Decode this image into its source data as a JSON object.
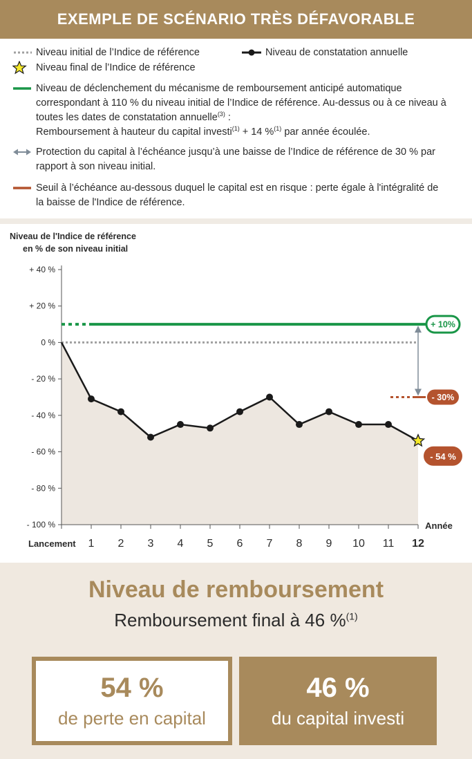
{
  "header": {
    "title": "EXEMPLE DE SCÉNARIO TRÈS DÉFAVORABLE"
  },
  "legend": {
    "initial_level": "Niveau initial de l’Indice de référence",
    "annual_level": "Niveau de constatation annuelle",
    "final_level": "Niveau final de l’Indice de référence",
    "trigger_line1": "Niveau de déclenchement du mécanisme de remboursement anticipé automatique",
    "trigger_line2": "correspondant à 110 % du niveau initial de l’Indice de référence. Au-dessus ou à ce niveau à",
    "trigger_line3": "toutes les dates de constatation annuelle",
    "trigger_line3_sup": "(3)",
    "trigger_line3_end": " :",
    "trigger_line4_a": "Remboursement à hauteur du capital investi",
    "trigger_line4_sup1": "(1)",
    "trigger_line4_b": " + 14 %",
    "trigger_line4_sup2": "(1)",
    "trigger_line4_c": " par année écoulée.",
    "protection_line1": "Protection du capital à l’échéance jusqu’à une baisse de l’Indice de référence de 30 % par",
    "protection_line2": "rapport à son niveau initial.",
    "threshold_line1": "Seuil à l’échéance au-dessous duquel le capital est en risque : perte égale à l'intégralité de",
    "threshold_line2": "la baisse de l'Indice de référence."
  },
  "colors": {
    "brand": "#a88a5c",
    "green": "#1a9648",
    "red": "#b4532e",
    "grey_dotted": "#a0a0a0",
    "arrow": "#7f8c98",
    "area": "#ede7e0",
    "star": "#f5e92a"
  },
  "chart_data": {
    "type": "line",
    "ylabel_line1": "Niveau de l'Indice de référence",
    "ylabel_line2": "en % de son niveau initial",
    "xlabel": "Année",
    "ylim": [
      -100,
      40
    ],
    "yticks": [
      40,
      20,
      0,
      -20,
      -40,
      -60,
      -80,
      -100
    ],
    "ytick_labels": [
      "+ 40 %",
      "+ 20 %",
      "0 %",
      "- 20 %",
      "- 40 %",
      "- 60 %",
      "- 80 %",
      "- 100 %"
    ],
    "x": [
      0,
      1,
      2,
      3,
      4,
      5,
      6,
      7,
      8,
      9,
      10,
      11,
      12
    ],
    "xtick_labels": [
      "Lancement",
      "1",
      "2",
      "3",
      "4",
      "5",
      "6",
      "7",
      "8",
      "9",
      "10",
      "11",
      "12"
    ],
    "series": [
      {
        "values": [
          0,
          -31,
          -38,
          -52,
          -45,
          -47,
          -38,
          -30,
          -45,
          -38,
          -45,
          -45,
          -54
        ]
      }
    ],
    "trigger_level": 10,
    "trigger_label": "+ 10%",
    "initial_level": 0,
    "threshold_level": -30,
    "threshold_label": "- 30%",
    "final_value": -54,
    "final_label": "- 54 %",
    "grid": false
  },
  "result": {
    "title": "Niveau de remboursement",
    "subtitle": "Remboursement final à 46 %",
    "subtitle_sup": "(1)",
    "loss_value": "54 %",
    "loss_text": "de perte en capital",
    "capital_value": "46 %",
    "capital_text": "du capital investi"
  }
}
